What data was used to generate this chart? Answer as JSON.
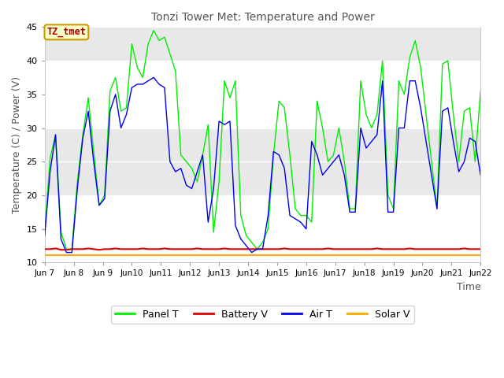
{
  "title": "Tonzi Tower Met: Temperature and Power",
  "xlabel": "Time",
  "ylabel": "Temperature (C) / Power (V)",
  "ylim": [
    10,
    45
  ],
  "annotation_text": "TZ_tmet",
  "annotation_bg": "#ffffcc",
  "annotation_border": "#cc9900",
  "annotation_textcolor": "#aa0000",
  "fig_bg": "#ffffff",
  "plot_bg": "#ffffff",
  "band1_color": "#e8e8e8",
  "legend_labels": [
    "Panel T",
    "Battery V",
    "Air T",
    "Solar V"
  ],
  "legend_colors": [
    "#00ee00",
    "#dd0000",
    "#0000ee",
    "#ffaa00"
  ],
  "xtick_labels": [
    "Jun 7",
    "Jun 8",
    "Jun 9",
    "Jun 10",
    "Jun 11",
    "Jun 12",
    "Jun 13",
    "Jun 14",
    "Jun 15",
    "Jun 16",
    "Jun 17",
    "Jun 18",
    "Jun 19",
    "Jun 20",
    "Jun 21",
    "Jun 22"
  ],
  "ytick_labels": [
    10,
    15,
    20,
    25,
    30,
    35,
    40,
    45
  ],
  "panel_t": [
    14.5,
    25.5,
    29.0,
    14.5,
    12.0,
    12.0,
    22.0,
    29.0,
    34.5,
    26.5,
    18.5,
    20.0,
    35.5,
    37.5,
    32.5,
    33.0,
    42.5,
    39.0,
    37.5,
    42.5,
    44.5,
    43.0,
    43.5,
    41.0,
    38.5,
    26.0,
    25.0,
    24.0,
    22.0,
    26.0,
    30.5,
    14.5,
    22.0,
    37.0,
    34.5,
    37.0,
    17.0,
    14.0,
    13.0,
    12.0,
    13.0,
    15.0,
    26.0,
    34.0,
    33.0,
    26.0,
    18.0,
    17.0,
    17.0,
    16.0,
    34.0,
    30.0,
    25.0,
    26.0,
    30.0,
    25.0,
    18.0,
    18.0,
    37.0,
    32.0,
    30.0,
    32.0,
    40.0,
    20.0,
    18.0,
    37.0,
    35.0,
    40.5,
    43.0,
    39.0,
    32.0,
    25.0,
    18.0,
    39.5,
    40.0,
    32.0,
    25.0,
    32.5,
    33.0,
    25.0,
    35.5
  ],
  "air_t": [
    14.0,
    23.5,
    29.0,
    13.5,
    11.5,
    11.5,
    21.0,
    28.5,
    32.5,
    25.0,
    18.5,
    19.5,
    32.5,
    35.0,
    30.0,
    32.0,
    36.0,
    36.5,
    36.5,
    37.0,
    37.5,
    36.5,
    36.0,
    25.0,
    23.5,
    24.0,
    21.5,
    21.0,
    23.5,
    26.0,
    16.0,
    21.0,
    31.0,
    30.5,
    31.0,
    15.5,
    13.5,
    12.5,
    11.5,
    12.0,
    12.0,
    17.0,
    26.5,
    26.0,
    24.0,
    17.0,
    16.5,
    16.0,
    15.0,
    28.0,
    26.0,
    23.0,
    24.0,
    25.0,
    26.0,
    23.0,
    17.5,
    17.5,
    30.0,
    27.0,
    28.0,
    29.0,
    37.0,
    17.5,
    17.5,
    30.0,
    30.0,
    37.0,
    37.0,
    33.0,
    28.0,
    23.0,
    18.0,
    32.5,
    33.0,
    28.0,
    23.5,
    25.0,
    28.5,
    28.0,
    23.0
  ],
  "battery_v": [
    12.0,
    12.0,
    12.1,
    11.9,
    11.9,
    12.0,
    12.0,
    12.0,
    12.1,
    12.0,
    11.9,
    12.0,
    12.0,
    12.1,
    12.0,
    12.0,
    12.0,
    12.0,
    12.1,
    12.0,
    12.0,
    12.0,
    12.1,
    12.0,
    12.0,
    12.0,
    12.0,
    12.0,
    12.1,
    12.0,
    12.0,
    12.0,
    12.0,
    12.1,
    12.0,
    12.0,
    12.0,
    12.0,
    12.0,
    12.0,
    12.0,
    12.0,
    12.0,
    12.0,
    12.1,
    12.0,
    12.0,
    12.0,
    12.0,
    12.0,
    12.0,
    12.0,
    12.1,
    12.0,
    12.0,
    12.0,
    12.0,
    12.0,
    12.0,
    12.0,
    12.0,
    12.1,
    12.0,
    12.0,
    12.0,
    12.0,
    12.0,
    12.1,
    12.0,
    12.0,
    12.0,
    12.0,
    12.0,
    12.0,
    12.0,
    12.0,
    12.0,
    12.1,
    12.0,
    12.0,
    12.0
  ],
  "solar_v": [
    11.1,
    11.1,
    11.1,
    11.1,
    11.1,
    11.1,
    11.1,
    11.1,
    11.1,
    11.1,
    11.1,
    11.1,
    11.1,
    11.1,
    11.1,
    11.1,
    11.1,
    11.1,
    11.1,
    11.1,
    11.1,
    11.1,
    11.1,
    11.1,
    11.1,
    11.1,
    11.1,
    11.1,
    11.1,
    11.1,
    11.1,
    11.1,
    11.1,
    11.1,
    11.1,
    11.1,
    11.1,
    11.1,
    11.1,
    11.1,
    11.1,
    11.1,
    11.1,
    11.1,
    11.1,
    11.1,
    11.1,
    11.1,
    11.1,
    11.1,
    11.1,
    11.1,
    11.1,
    11.1,
    11.1,
    11.1,
    11.1,
    11.1,
    11.1,
    11.1,
    11.1,
    11.1,
    11.1,
    11.1,
    11.1,
    11.1,
    11.1,
    11.1,
    11.1,
    11.1,
    11.1,
    11.1,
    11.1,
    11.1,
    11.1,
    11.1,
    11.1,
    11.1,
    11.1,
    11.1,
    11.1
  ]
}
